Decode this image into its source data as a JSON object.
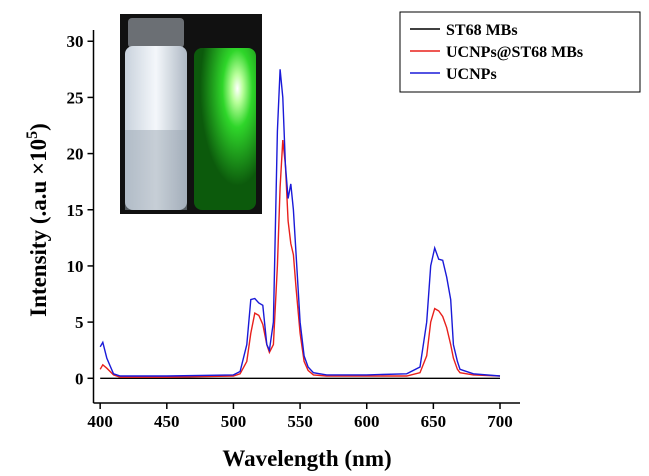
{
  "chart_data": {
    "type": "line",
    "x_label": "Wavelength (nm)",
    "y_label": [
      "Intensity (.a.u ×10",
      "5",
      ")"
    ],
    "x": [
      400,
      402,
      405,
      410,
      415,
      450,
      500,
      505,
      510,
      513,
      516,
      519,
      522,
      525,
      527,
      530,
      533,
      535,
      537,
      539,
      541,
      543,
      545,
      547,
      550,
      553,
      556,
      560,
      570,
      600,
      630,
      640,
      645,
      648,
      651,
      654,
      657,
      660,
      663,
      665,
      668,
      670,
      680,
      700
    ],
    "series": [
      {
        "name": "ST68 MBs",
        "color": "#000000",
        "values": [
          0,
          0,
          0,
          0,
          0,
          0,
          0,
          0,
          0,
          0,
          0,
          0,
          0,
          0,
          0,
          0,
          0,
          0,
          0,
          0,
          0,
          0,
          0,
          0,
          0,
          0,
          0,
          0,
          0,
          0,
          0,
          0,
          0,
          0,
          0,
          0,
          0,
          0,
          0,
          0,
          0,
          0,
          0,
          0
        ]
      },
      {
        "name": "UCNPs@ST68 MBs",
        "color": "#e8201c",
        "values": [
          0.8,
          1.2,
          0.9,
          0.3,
          0.1,
          0.1,
          0.2,
          0.4,
          1.5,
          4,
          5.8,
          5.6,
          4.8,
          3,
          2.3,
          3,
          10,
          17,
          21.2,
          19,
          14,
          12,
          11,
          8,
          4,
          1.5,
          0.7,
          0.3,
          0.2,
          0.2,
          0.2,
          0.5,
          2,
          5,
          6.2,
          6,
          5.5,
          4.5,
          3,
          1.8,
          0.8,
          0.5,
          0.3,
          0.2
        ]
      },
      {
        "name": "UCNPs",
        "color": "#1a1ad8",
        "values": [
          2.8,
          3.2,
          1.8,
          0.4,
          0.2,
          0.2,
          0.3,
          0.6,
          3,
          7,
          7.1,
          6.7,
          6.5,
          3,
          2.5,
          5,
          22,
          27.5,
          25,
          19,
          16,
          17.3,
          15,
          11,
          5,
          2,
          1,
          0.5,
          0.3,
          0.3,
          0.4,
          1,
          5,
          10,
          11.6,
          10.6,
          10.5,
          9,
          7,
          3,
          1.5,
          0.8,
          0.4,
          0.2
        ]
      }
    ],
    "xlim": [
      395,
      715
    ],
    "xticks": [
      400,
      450,
      500,
      550,
      600,
      650,
      700
    ],
    "ylim": [
      -2.2,
      31
    ],
    "yticks": [
      0,
      5,
      10,
      15,
      20,
      25,
      30
    ],
    "legend": "upper right"
  }
}
